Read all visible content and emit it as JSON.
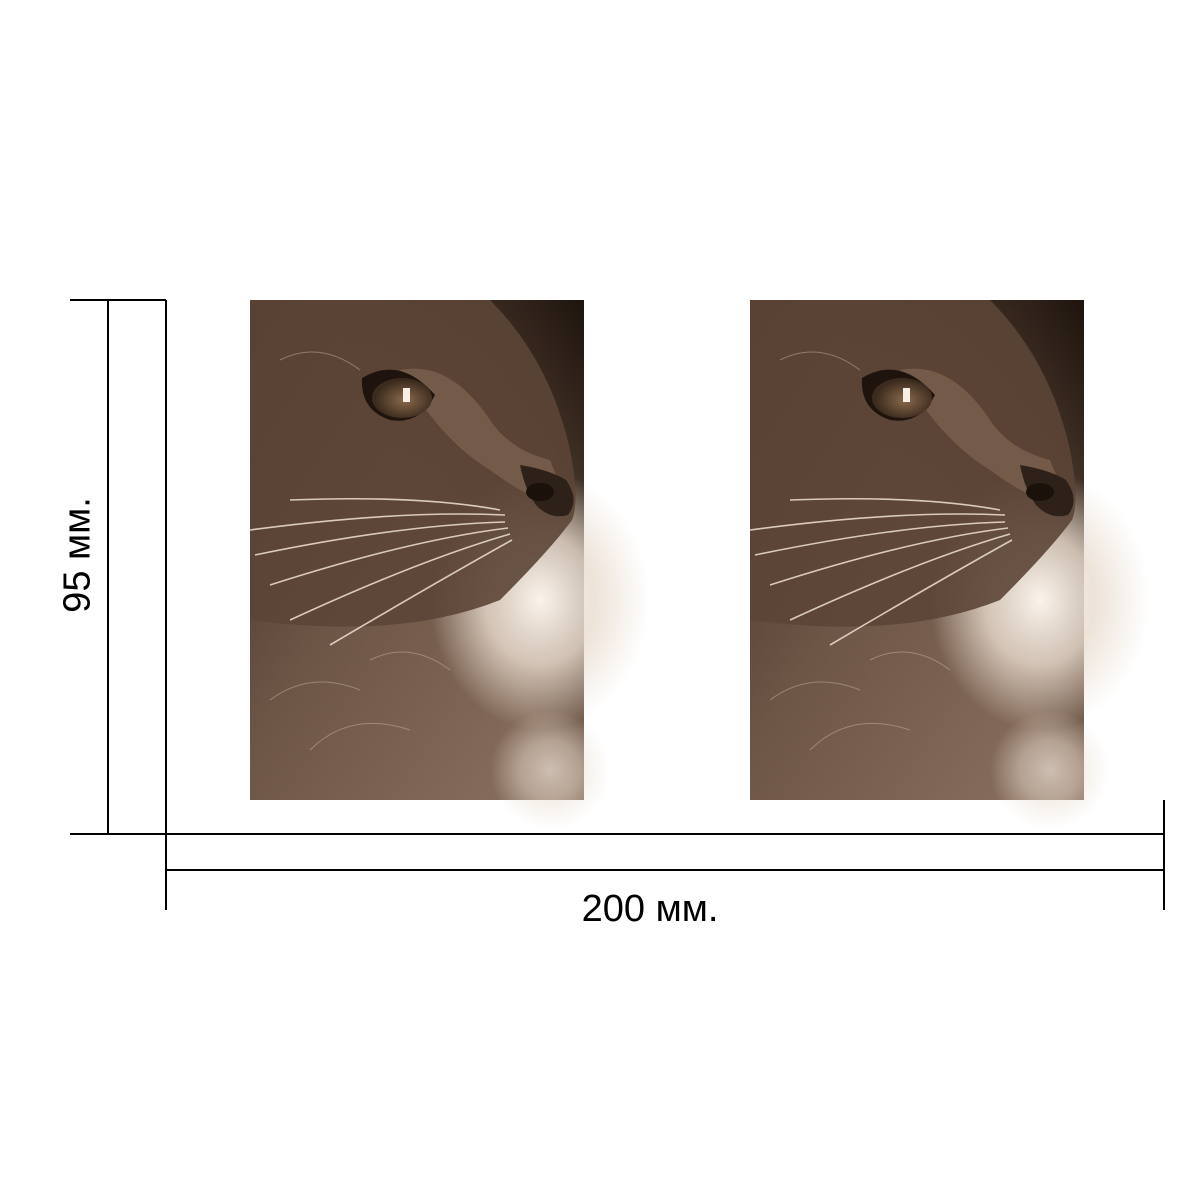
{
  "dimensions": {
    "width_label": "200 мм.",
    "height_label": "95 мм."
  },
  "product": {
    "photo_count": 2,
    "photo_subject": "cat-profile-sepia",
    "colors": {
      "sepia_dark": "#1e140d",
      "sepia_mid": "#6e5646",
      "sepia_light": "#e9dccf",
      "line": "#000000"
    }
  }
}
